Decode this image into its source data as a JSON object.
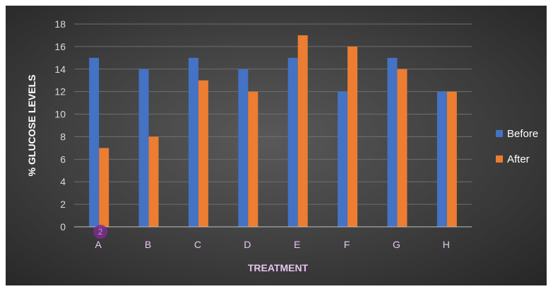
{
  "chart_data": {
    "type": "bar",
    "title": "",
    "xlabel": "TREATMENT",
    "ylabel": "% GLUCOSE LEVELS",
    "categories": [
      "A",
      "B",
      "C",
      "D",
      "E",
      "F",
      "G",
      "H"
    ],
    "series": [
      {
        "name": "Before",
        "values": [
          15,
          14,
          15,
          14,
          15,
          12,
          15,
          12
        ],
        "color": "#4472c4"
      },
      {
        "name": "After",
        "values": [
          7,
          8,
          13,
          12,
          17,
          16,
          14,
          12
        ],
        "color": "#ed7d31"
      }
    ],
    "ylim": [
      0,
      18
    ],
    "yticks": [
      0,
      2,
      4,
      6,
      8,
      10,
      12,
      14,
      16,
      18
    ],
    "grid": true,
    "legend": "right",
    "annotation": "2",
    "background": "#3a3a3a"
  }
}
